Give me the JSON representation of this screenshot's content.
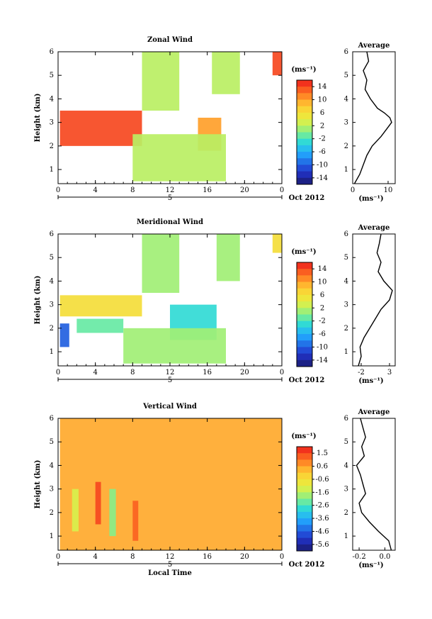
{
  "figure": {
    "month_label": "Oct 2012",
    "xlabel_bottom": "Local Time"
  },
  "chart_data": [
    {
      "type": "heatmap",
      "title": "Zonal Wind",
      "ylabel": "Height (km)",
      "xlabel": "",
      "x_ticks": [
        "0",
        "4",
        "8",
        "12",
        "16",
        "20",
        "0"
      ],
      "xlim": [
        0,
        24
      ],
      "y_ticks": [
        "1",
        "2",
        "3",
        "4",
        "5",
        "6"
      ],
      "ylim": [
        0.4,
        6
      ],
      "date_marker": "5",
      "colorbar_unit": "(ms⁻¹)",
      "colorbar_ticks": [
        "14",
        "10",
        "6",
        "2",
        "-2",
        "-6",
        "-10",
        "-14"
      ],
      "colorbar_range": [
        -16,
        16
      ],
      "features": [
        {
          "t0": 0.2,
          "t1": 9.0,
          "h0": 2.0,
          "h1": 3.5,
          "value": 14
        },
        {
          "t0": 15.0,
          "t1": 17.5,
          "h0": 1.8,
          "h1": 3.2,
          "value": 10
        },
        {
          "t0": 23.0,
          "t1": 24.0,
          "h0": 5.0,
          "h1": 6.0,
          "value": 14
        },
        {
          "t0": 8.0,
          "t1": 18.0,
          "h0": 0.5,
          "h1": 2.5,
          "value": 2
        },
        {
          "t0": 9.0,
          "t1": 13.0,
          "h0": 3.5,
          "h1": 6.0,
          "value": 2
        },
        {
          "t0": 16.5,
          "t1": 19.5,
          "h0": 4.2,
          "h1": 6.0,
          "value": 2
        }
      ],
      "average_profile": {
        "title": "Average",
        "xlabel": "(ms⁻¹)",
        "x_ticks": [
          "0",
          "10"
        ],
        "xlim": [
          0,
          12
        ],
        "height": [
          0.4,
          0.8,
          1.2,
          1.6,
          2.0,
          2.4,
          2.8,
          3.0,
          3.2,
          3.4,
          3.6,
          4.0,
          4.4,
          4.8,
          5.2,
          5.6,
          6.0
        ],
        "value": [
          0.5,
          2.0,
          3.0,
          4.0,
          5.5,
          8.0,
          10.0,
          11.0,
          10.5,
          9.0,
          7.0,
          5.0,
          3.5,
          4.0,
          3.0,
          4.5,
          4.0
        ]
      }
    },
    {
      "type": "heatmap",
      "title": "Meridional Wind",
      "ylabel": "Height (km)",
      "xlabel": "",
      "x_ticks": [
        "0",
        "4",
        "8",
        "12",
        "16",
        "20",
        "0"
      ],
      "xlim": [
        0,
        24
      ],
      "y_ticks": [
        "1",
        "2",
        "3",
        "4",
        "5",
        "6"
      ],
      "ylim": [
        0.4,
        6
      ],
      "date_marker": "5",
      "colorbar_unit": "(ms⁻¹)",
      "colorbar_ticks": [
        "14",
        "10",
        "6",
        "2",
        "-2",
        "-6",
        "-10",
        "-14"
      ],
      "colorbar_range": [
        -16,
        16
      ],
      "features": [
        {
          "t0": 0.2,
          "t1": 9.0,
          "h0": 2.5,
          "h1": 3.4,
          "value": 6
        },
        {
          "t0": 0.2,
          "t1": 1.2,
          "h0": 1.2,
          "h1": 2.2,
          "value": -10
        },
        {
          "t0": 12.0,
          "t1": 17.0,
          "h0": 1.5,
          "h1": 3.0,
          "value": -3
        },
        {
          "t0": 2.0,
          "t1": 7.0,
          "h0": 1.8,
          "h1": 2.4,
          "value": -1
        },
        {
          "t0": 7.0,
          "t1": 18.0,
          "h0": 0.5,
          "h1": 2.0,
          "value": 1
        },
        {
          "t0": 9.0,
          "t1": 13.0,
          "h0": 3.5,
          "h1": 6.0,
          "value": 1
        },
        {
          "t0": 17.0,
          "t1": 19.5,
          "h0": 4.0,
          "h1": 6.0,
          "value": 1
        },
        {
          "t0": 23.0,
          "t1": 24.0,
          "h0": 5.2,
          "h1": 6.0,
          "value": 6
        }
      ],
      "average_profile": {
        "title": "Average",
        "xlabel": "(ms⁻¹)",
        "x_ticks": [
          "-2",
          "3"
        ],
        "xlim": [
          -3.5,
          4
        ],
        "height": [
          0.4,
          0.8,
          1.2,
          1.6,
          2.0,
          2.4,
          2.8,
          3.2,
          3.6,
          4.0,
          4.4,
          4.8,
          5.2,
          5.6,
          6.0
        ],
        "value": [
          -2.5,
          -2.0,
          -2.2,
          -1.5,
          -0.5,
          0.5,
          1.5,
          3.0,
          3.5,
          2.0,
          1.0,
          1.5,
          0.8,
          1.2,
          1.5
        ]
      }
    },
    {
      "type": "heatmap",
      "title": "Vertical Wind",
      "ylabel": "Height (km)",
      "xlabel": "Local Time",
      "x_ticks": [
        "0",
        "4",
        "8",
        "12",
        "16",
        "20",
        "0"
      ],
      "xlim": [
        0,
        24
      ],
      "y_ticks": [
        "1",
        "2",
        "3",
        "4",
        "5",
        "6"
      ],
      "ylim": [
        0.4,
        6
      ],
      "date_marker": "5",
      "colorbar_unit": "(ms⁻¹)",
      "colorbar_ticks": [
        "1.5",
        "0.6",
        "-0.6",
        "-1.6",
        "-2.6",
        "-3.6",
        "-4.6",
        "-5.6"
      ],
      "colorbar_range": [
        -6.0,
        2.0
      ],
      "features": [
        {
          "t0": 0.2,
          "t1": 24.0,
          "h0": 0.4,
          "h1": 6.0,
          "value": 0.4
        },
        {
          "t0": 1.5,
          "t1": 2.2,
          "h0": 1.2,
          "h1": 3.0,
          "value": -1.2
        },
        {
          "t0": 4.0,
          "t1": 4.6,
          "h0": 1.5,
          "h1": 3.3,
          "value": 1.5
        },
        {
          "t0": 5.5,
          "t1": 6.2,
          "h0": 1.0,
          "h1": 3.0,
          "value": -2.0
        },
        {
          "t0": 8.0,
          "t1": 8.6,
          "h0": 0.8,
          "h1": 2.5,
          "value": 1.2
        }
      ],
      "average_profile": {
        "title": "Average",
        "xlabel": "(ms⁻¹)",
        "x_ticks": [
          "-0.2",
          "0.0"
        ],
        "xlim": [
          -0.25,
          0.08
        ],
        "height": [
          0.4,
          0.8,
          1.2,
          1.6,
          2.0,
          2.4,
          2.8,
          3.2,
          3.6,
          4.0,
          4.4,
          4.8,
          5.2,
          5.6,
          6.0
        ],
        "value": [
          0.05,
          0.03,
          -0.05,
          -0.12,
          -0.18,
          -0.2,
          -0.15,
          -0.17,
          -0.19,
          -0.22,
          -0.16,
          -0.18,
          -0.15,
          -0.17,
          -0.19
        ]
      }
    }
  ]
}
